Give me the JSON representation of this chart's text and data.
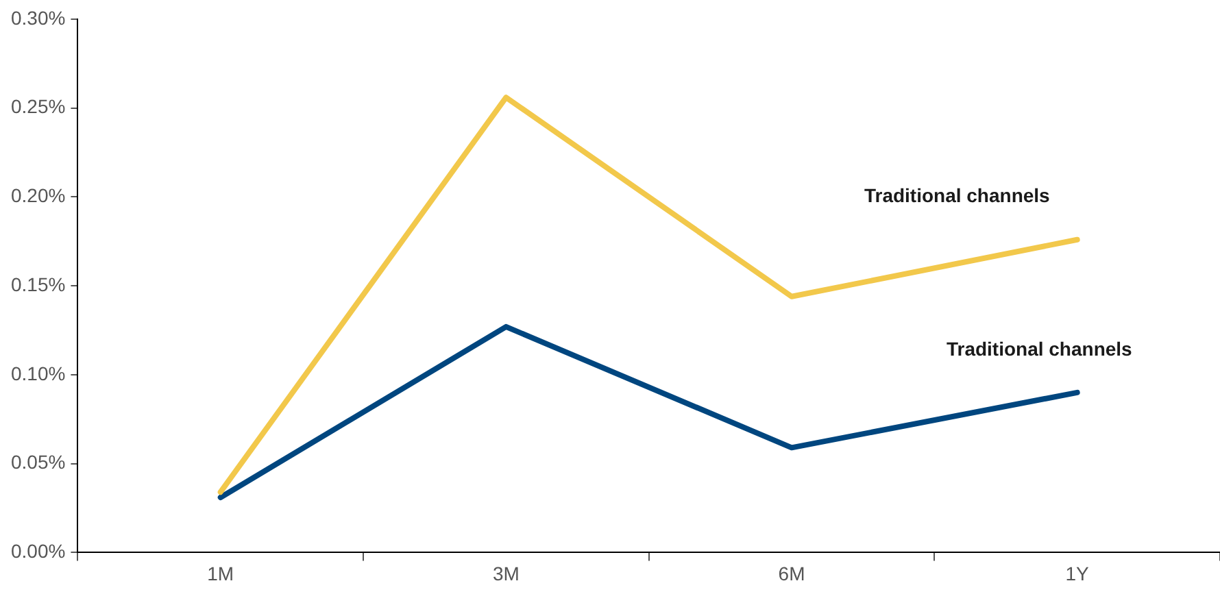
{
  "chart_data": {
    "type": "line",
    "categories": [
      "1M",
      "3M",
      "6M",
      "1Y"
    ],
    "series": [
      {
        "name": "Traditional channels",
        "color": "#f2c84b",
        "values": [
          0.034,
          0.256,
          0.144,
          0.176
        ]
      },
      {
        "name": "Traditional channels",
        "color": "#00467f",
        "values": [
          0.031,
          0.127,
          0.059,
          0.09
        ]
      }
    ],
    "ylim": [
      0,
      0.3
    ],
    "yticks": [
      {
        "value": 0,
        "label": "0.00%"
      },
      {
        "value": 0.05,
        "label": "0.05%"
      },
      {
        "value": 0.1,
        "label": "0.10%"
      },
      {
        "value": 0.15,
        "label": "0.15%"
      },
      {
        "value": 0.2,
        "label": "0.20%"
      },
      {
        "value": 0.25,
        "label": "0.25%"
      },
      {
        "value": 0.3,
        "label": "0.30%"
      }
    ],
    "grid": false,
    "legend": false,
    "marker": "none",
    "line_style": "solid"
  }
}
